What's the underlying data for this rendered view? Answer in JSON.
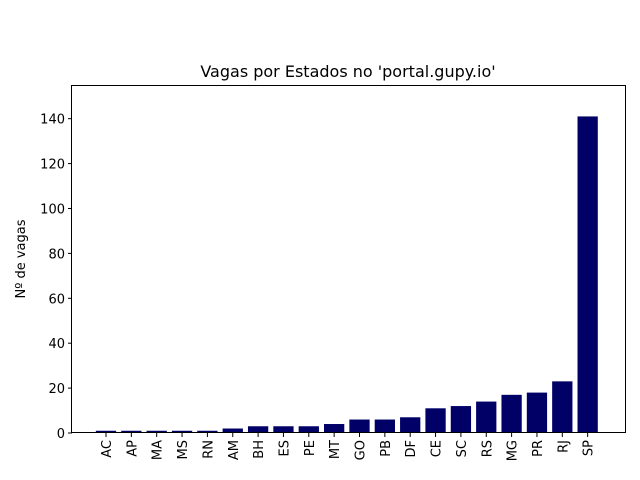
{
  "chart_data": {
    "type": "bar",
    "title": "Vagas por Estados no 'portal.gupy.io'",
    "xlabel": "",
    "ylabel": "Nº de vagas",
    "categories": [
      "AC",
      "AP",
      "MA",
      "MS",
      "RN",
      "AM",
      "BH",
      "ES",
      "PE",
      "MT",
      "GO",
      "PB",
      "DF",
      "CE",
      "SC",
      "RS",
      "MG",
      "PR",
      "RJ",
      "SP"
    ],
    "values": [
      1,
      1,
      1,
      1,
      1,
      2,
      3,
      3,
      3,
      4,
      6,
      6,
      7,
      11,
      12,
      14,
      17,
      18,
      23,
      141
    ],
    "ylim": [
      0,
      155
    ],
    "yticks": [
      0,
      20,
      40,
      60,
      80,
      100,
      120,
      140
    ],
    "bar_color": "#000066",
    "grid": false,
    "legend": "none"
  }
}
